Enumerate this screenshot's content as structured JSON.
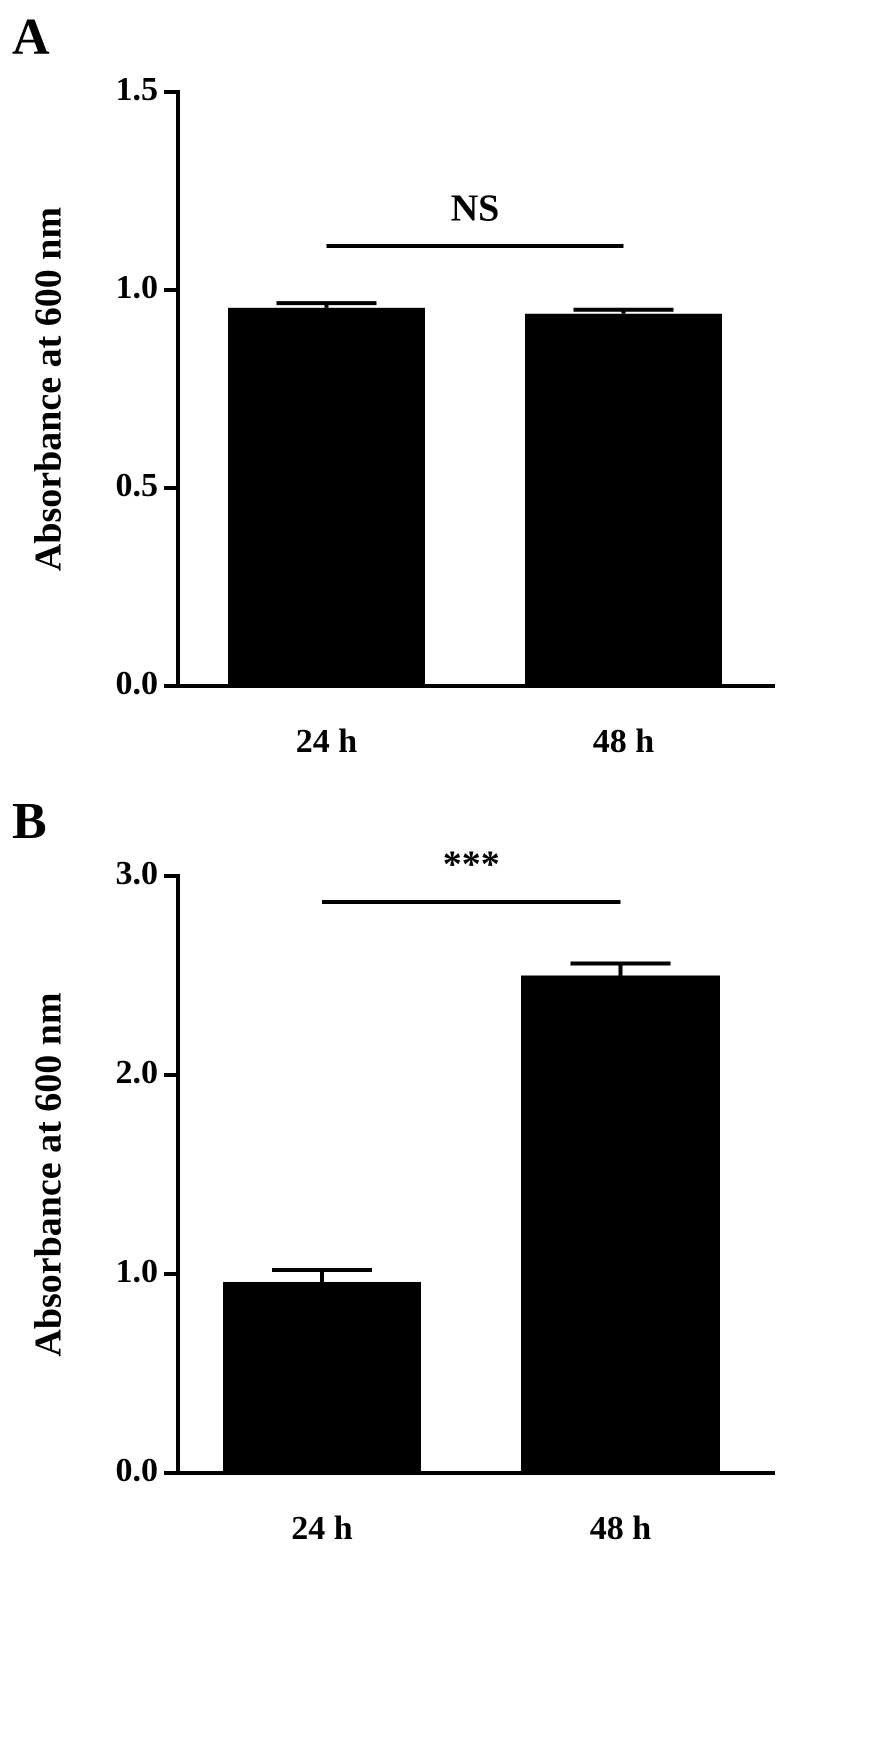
{
  "chart_data": [
    {
      "type": "bar",
      "panel": "A",
      "ylabel": "Absorbance at 600 nm",
      "categories": [
        "24 h",
        "48 h"
      ],
      "values": [
        0.955,
        0.94
      ],
      "errors": [
        0.012,
        0.01
      ],
      "color": "#000000",
      "ylim": [
        0,
        1.5
      ],
      "yticks": [
        {
          "value": 0,
          "label": "0.0"
        },
        0.5,
        {
          "value": 1,
          "label": "1.0"
        },
        1.5
      ],
      "annotation": "NS"
    },
    {
      "type": "bar",
      "panel": "B",
      "ylabel": "Absorbance at 600 nm",
      "categories": [
        "24 h",
        "48 h"
      ],
      "values": [
        0.96,
        2.5
      ],
      "errors": [
        0.06,
        0.06
      ],
      "color": "#000000",
      "ylim": [
        0,
        3
      ],
      "yticks": [
        {
          "value": 0,
          "label": "0.0"
        },
        {
          "value": 1,
          "label": "1.0"
        },
        {
          "value": 2,
          "label": "2.0"
        },
        {
          "value": 3,
          "label": "3.0"
        }
      ],
      "annotation": "***"
    }
  ]
}
